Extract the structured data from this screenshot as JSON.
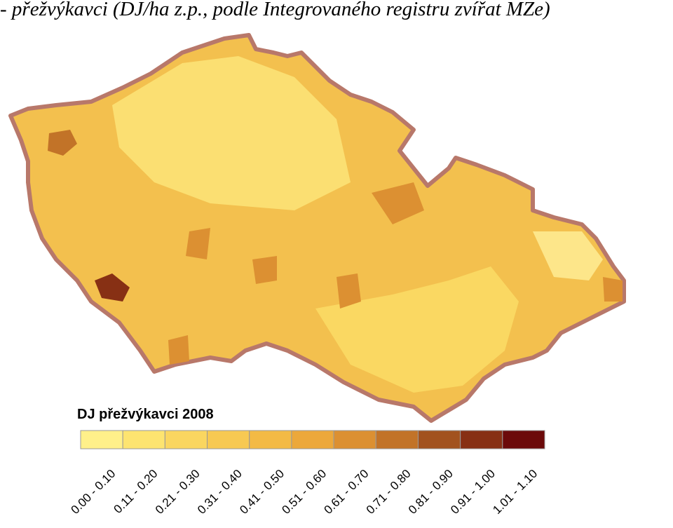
{
  "title": "- přežvýkavci (DJ/ha z.p., podle Integrovaného registru zvířat MZe)",
  "legend": {
    "title": "DJ  přežvýkavci  2008",
    "items": [
      {
        "label": "0.00 - 0.10",
        "color": "#fff08a"
      },
      {
        "label": "0.11 - 0.20",
        "color": "#fde470"
      },
      {
        "label": "0.21 - 0.30",
        "color": "#fad660"
      },
      {
        "label": "0.31 - 0.40",
        "color": "#f7c952"
      },
      {
        "label": "0.41 - 0.50",
        "color": "#f3ba45"
      },
      {
        "label": "0.51 - 0.60",
        "color": "#eca83b"
      },
      {
        "label": "0.61 - 0.70",
        "color": "#dc9032"
      },
      {
        "label": "0.71 - 0.80",
        "color": "#c27328"
      },
      {
        "label": "0.81 - 0.90",
        "color": "#a2521e"
      },
      {
        "label": "0.91 - 1.00",
        "color": "#873014"
      },
      {
        "label": "1.01 - 1.10",
        "color": "#6c0a0a"
      }
    ]
  }
}
